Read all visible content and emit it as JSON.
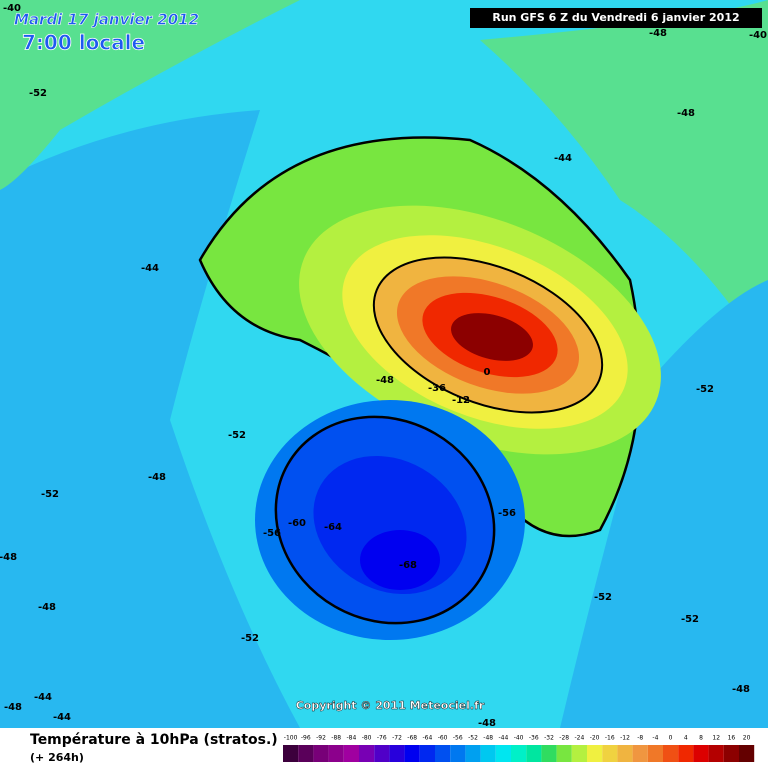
{
  "header": {
    "date": "Mardi 17 janvier 2012",
    "time": "7:00 locale",
    "run": "Run GFS 6 Z du Vendredi 6 janvier 2012"
  },
  "map": {
    "copyright": "Copyright © 2011 Meteociel.fr",
    "contour_labels": [
      -40,
      -52,
      -44,
      -48,
      -52,
      -52,
      -56,
      -60,
      -64,
      -68,
      -56,
      -52,
      -52,
      -52,
      -48,
      -44,
      -48,
      -36,
      -12,
      0,
      -48,
      -48,
      -52,
      -48,
      -48,
      -44,
      -44,
      -48,
      -48,
      -40
    ]
  },
  "footer": {
    "title": "Température à 10hPa (stratos.)",
    "lead": "(+ 264h)"
  },
  "color_scale": {
    "labels": [
      -100,
      -96,
      -92,
      -88,
      -84,
      -80,
      -76,
      -72,
      -68,
      -64,
      -60,
      -56,
      -52,
      -48,
      -44,
      -40,
      -36,
      -32,
      -28,
      -24,
      -20,
      -16,
      -12,
      -8,
      -4,
      0,
      4,
      8,
      12,
      16,
      20
    ],
    "colors": [
      "#3c003c",
      "#5a005a",
      "#780078",
      "#8c008c",
      "#a000a0",
      "#7800b4",
      "#5000c8",
      "#2800dc",
      "#0000f0",
      "#0028f0",
      "#0050f0",
      "#0078f0",
      "#00a0f0",
      "#00c8f0",
      "#00e6f0",
      "#00f0c8",
      "#00e6a0",
      "#30dc60",
      "#78e640",
      "#b4f040",
      "#f0f040",
      "#f0d240",
      "#f0b440",
      "#f09640",
      "#f07828",
      "#f05014",
      "#f02800",
      "#dc0000",
      "#b40000",
      "#8c0000",
      "#640000"
    ]
  }
}
